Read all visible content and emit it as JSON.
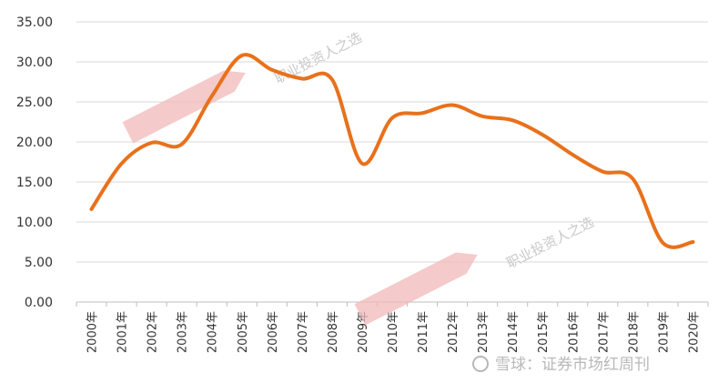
{
  "chart_data": {
    "type": "line",
    "categories": [
      "2000年",
      "2001年",
      "2002年",
      "2003年",
      "2004年",
      "2005年",
      "2006年",
      "2007年",
      "2008年",
      "2009年",
      "2010年",
      "2011年",
      "2012年",
      "2013年",
      "2014年",
      "2015年",
      "2016年",
      "2017年",
      "2018年",
      "2019年",
      "2020年"
    ],
    "series": [
      {
        "values": [
          11.6,
          17.3,
          19.9,
          19.7,
          25.7,
          30.8,
          29.0,
          27.9,
          27.8,
          17.3,
          23.0,
          23.6,
          24.6,
          23.2,
          22.7,
          20.9,
          18.4,
          16.3,
          15.4,
          7.4,
          7.5
        ]
      }
    ],
    "yticks": [
      "0.00",
      "5.00",
      "10.00",
      "15.00",
      "20.00",
      "25.00",
      "30.00",
      "35.00"
    ],
    "ylim": [
      0,
      35
    ],
    "grid": true,
    "legend": "none",
    "colors": {
      "line": "#e8711c",
      "grid": "#d9d9d9",
      "axis": "#bfbfbf"
    }
  },
  "watermarks": {
    "slogan": "职业投资人之选",
    "credit": "雪球：证券市场红周刊",
    "colors": {
      "stamp": "#f2b8b8",
      "slogan": "#c9c9c9",
      "credit": "#b8b8b8"
    }
  }
}
